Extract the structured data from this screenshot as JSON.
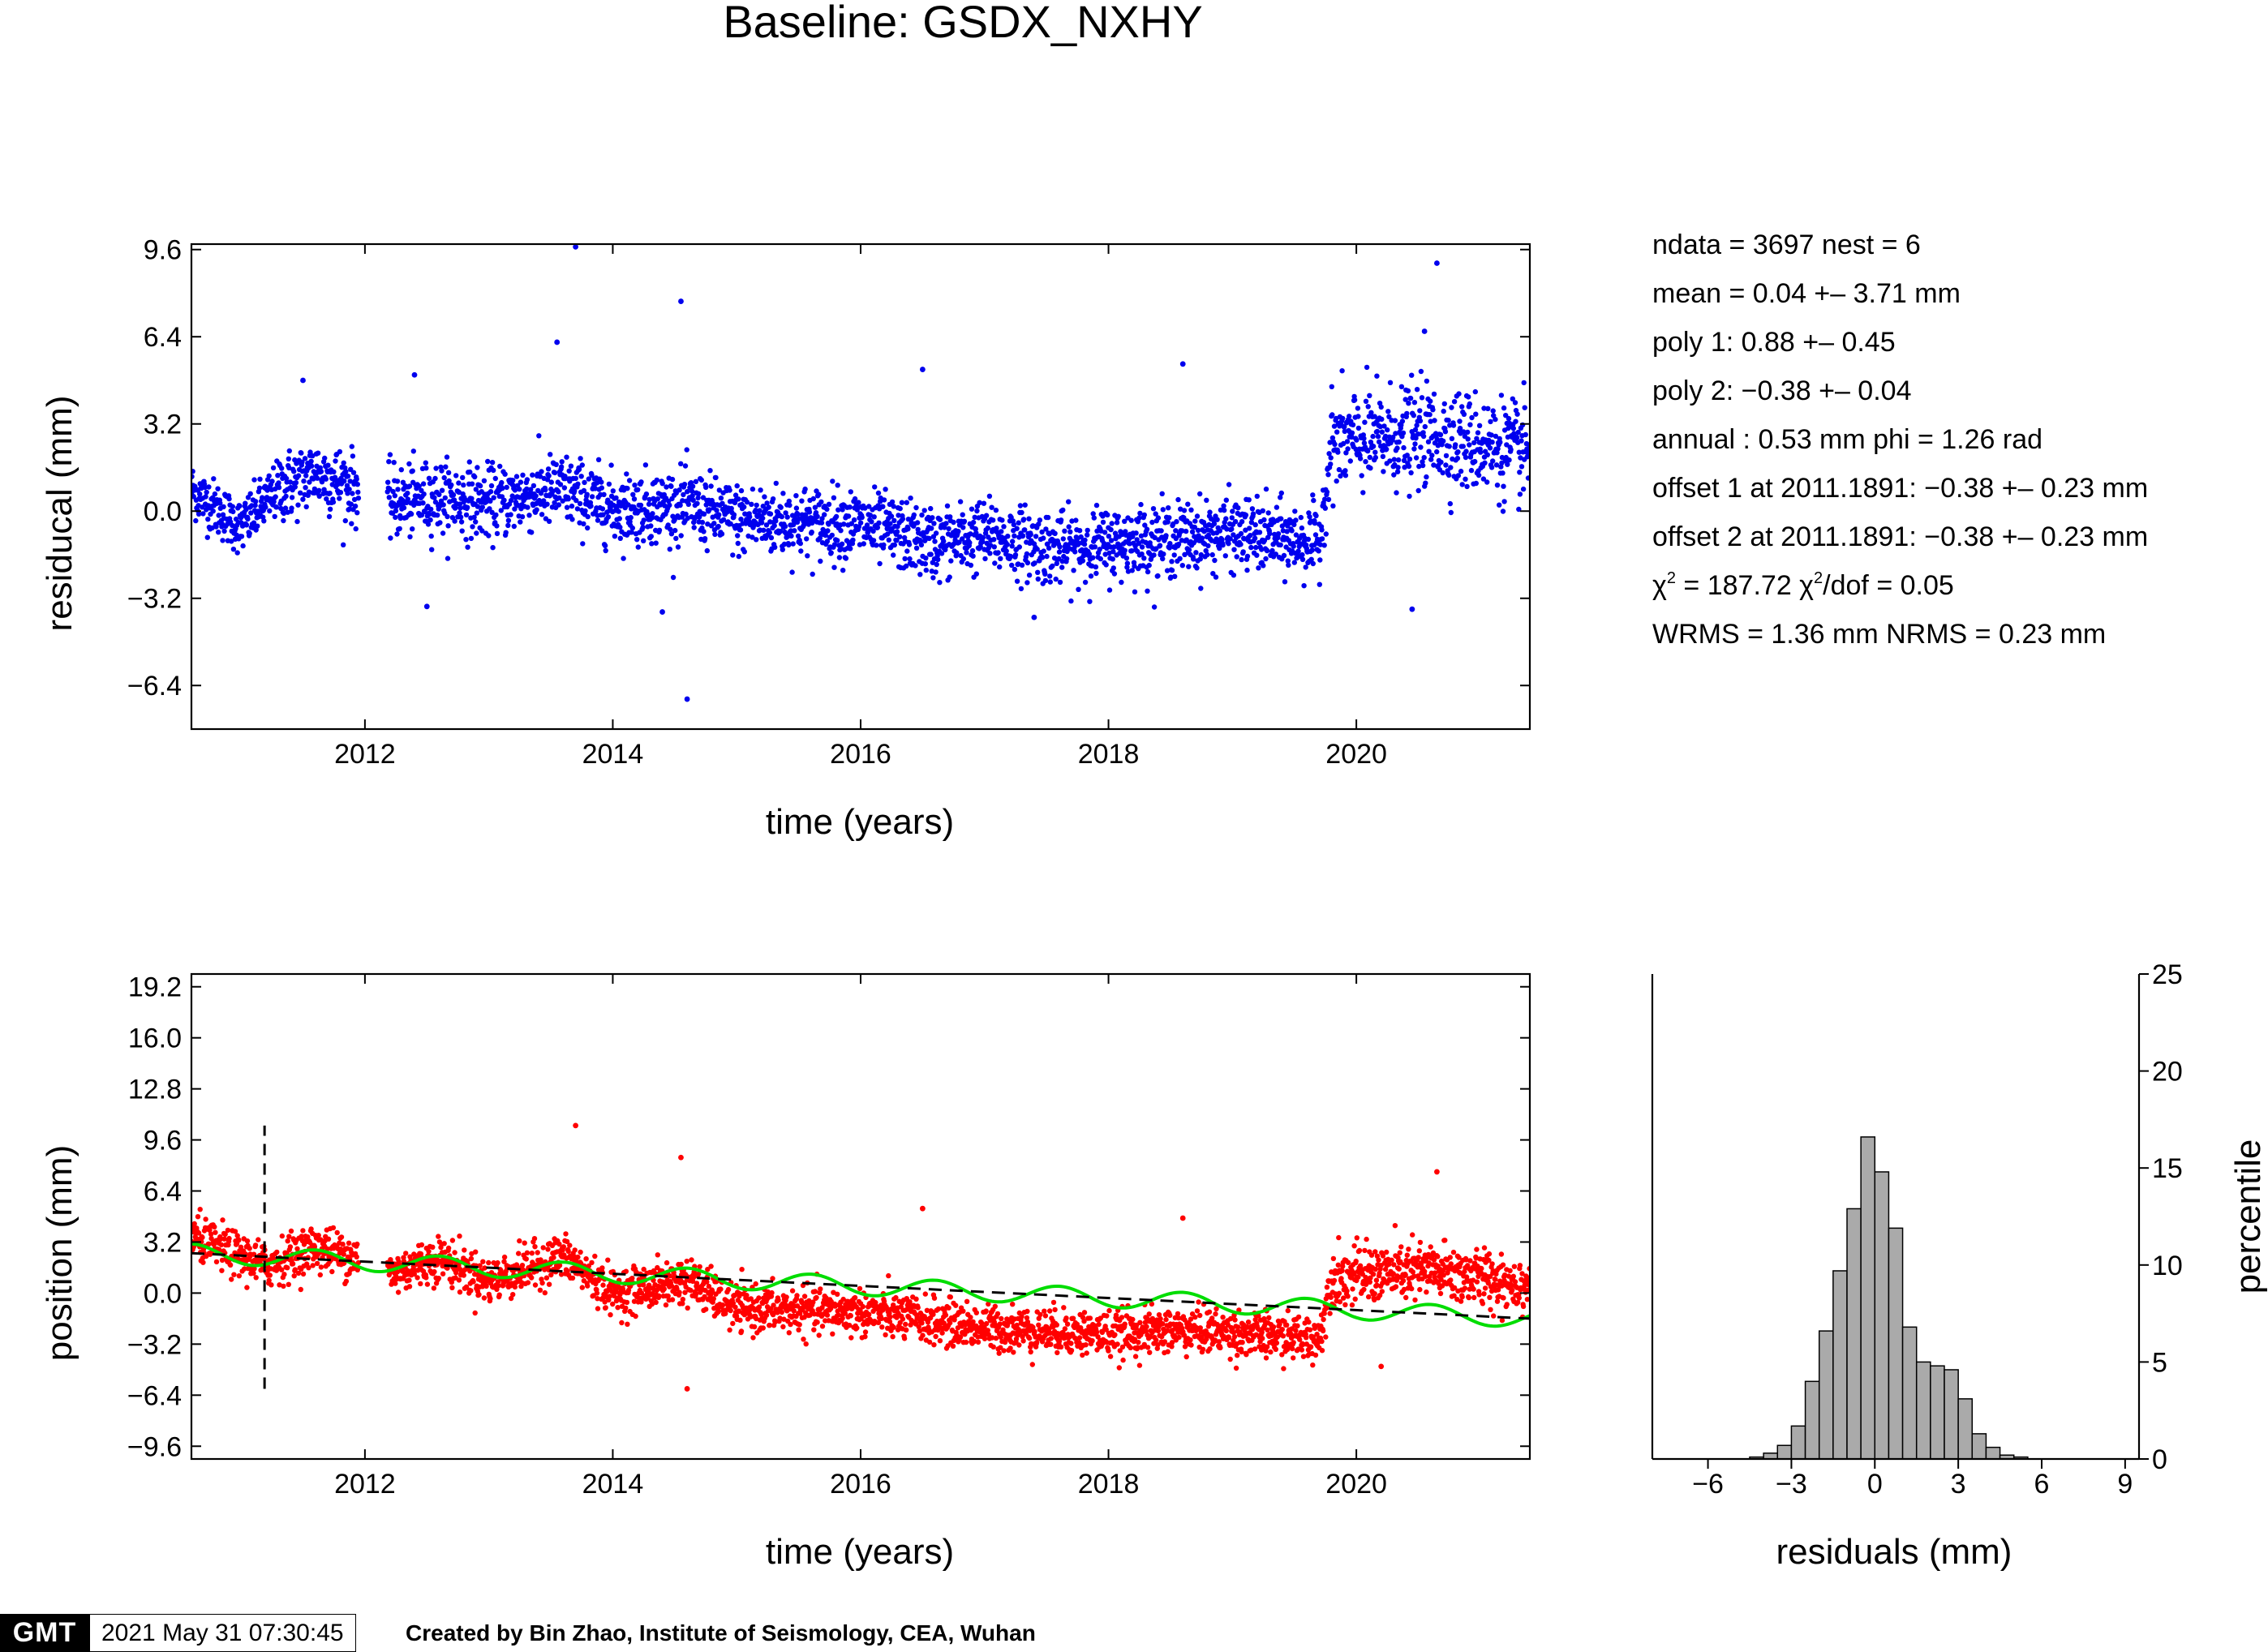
{
  "title": "Baseline: GSDX_NXHY",
  "stats": {
    "line1": "ndata = 3697  nest = 6",
    "line2": "mean = 0.04 +– 3.71 mm",
    "line3": "poly 1: 0.88 +– 0.45",
    "line4": "poly 2: −0.38 +– 0.04",
    "line5": "annual : 0.53 mm  phi = 1.26 rad",
    "line6": "offset 1 at 2011.1891: −0.38 +– 0.23 mm",
    "line7": "offset 2 at 2011.1891: −0.38 +– 0.23 mm",
    "chi2_sym": "χ",
    "chi2_sup": "2",
    "chi2_val": " = 187.72  ",
    "chi2dof_sym": "χ",
    "chi2dof_sup": "2",
    "chi2dof_val": "/dof = 0.05",
    "line9": "WRMS = 1.36 mm  NRMS = 0.23 mm"
  },
  "footer": {
    "logo": "GMT",
    "timestamp": "2021 May 31 07:30:45",
    "credit": "Created by Bin Zhao, Institute of Seismology, CEA, Wuhan"
  },
  "chart_data": [
    {
      "type": "scatter",
      "name": "residual",
      "color": "#0000ee",
      "xlabel": "time (years)",
      "ylabel": "residucal (mm)",
      "xlim": [
        2010.6,
        2021.4
      ],
      "ylim": [
        -8.0,
        9.8
      ],
      "xticks": [
        2012,
        2014,
        2016,
        2018,
        2020
      ],
      "yticks": [
        -6.4,
        -3.2,
        0.0,
        3.2,
        6.4,
        9.6
      ],
      "ytick_labels": [
        "−6.4",
        "−3.2",
        "0.0",
        "3.2",
        "6.4",
        "9.6"
      ],
      "trend_points": [
        [
          2010.6,
          0.8
        ],
        [
          2011.0,
          -0.6
        ],
        [
          2011.3,
          0.8
        ],
        [
          2011.6,
          1.4
        ],
        [
          2011.9,
          0.9
        ],
        [
          2012.2,
          0.3
        ],
        [
          2012.6,
          0.5
        ],
        [
          2013.0,
          0.3
        ],
        [
          2013.6,
          0.8
        ],
        [
          2014.0,
          0.1
        ],
        [
          2014.6,
          0.2
        ],
        [
          2015.0,
          -0.3
        ],
        [
          2016.0,
          -0.5
        ],
        [
          2016.6,
          -1.2
        ],
        [
          2017.0,
          -0.9
        ],
        [
          2017.6,
          -1.4
        ],
        [
          2018.0,
          -1.2
        ],
        [
          2018.6,
          -1.0
        ],
        [
          2019.0,
          -0.8
        ],
        [
          2019.7,
          -1.2
        ],
        [
          2019.8,
          2.5
        ],
        [
          2020.6,
          2.8
        ],
        [
          2021.4,
          2.1
        ]
      ],
      "outliers": [
        [
          2013.7,
          9.7
        ],
        [
          2014.55,
          7.7
        ],
        [
          2014.6,
          -6.9
        ],
        [
          2020.65,
          9.1
        ],
        [
          2020.55,
          6.6
        ],
        [
          2018.6,
          5.4
        ],
        [
          2016.5,
          5.2
        ],
        [
          2013.55,
          6.2
        ],
        [
          2012.5,
          -3.5
        ],
        [
          2014.4,
          -3.7
        ],
        [
          2020.45,
          -3.6
        ],
        [
          2017.4,
          -3.9
        ],
        [
          2011.5,
          4.8
        ],
        [
          2012.4,
          5.0
        ]
      ]
    },
    {
      "type": "scatter",
      "name": "position",
      "color": "#ff0000",
      "xlabel": "time (years)",
      "ylabel": "position (mm)",
      "xlim": [
        2010.6,
        2021.4
      ],
      "ylim": [
        -10.4,
        20.0
      ],
      "xticks": [
        2012,
        2014,
        2016,
        2018,
        2020
      ],
      "yticks": [
        -9.6,
        -6.4,
        -3.2,
        0.0,
        3.2,
        6.4,
        9.6,
        12.8,
        16.0,
        19.2
      ],
      "ytick_labels": [
        "−9.6",
        "−6.4",
        "−3.2",
        "0.0",
        "3.2",
        "6.4",
        "9.6",
        "12.8",
        "16.0",
        "19.2"
      ],
      "offset_line_x": 2011.19,
      "offset_line_ylim": [
        -6.0,
        10.5
      ],
      "model_line": {
        "color": "#00dd00",
        "annual_amplitude": 0.53
      },
      "trend_line": {
        "color": "#000000",
        "style": "dashed",
        "x": [
          2010.6,
          2021.4
        ],
        "y": [
          2.5,
          -1.6
        ]
      },
      "trend_points": [
        [
          2010.6,
          3.5
        ],
        [
          2011.2,
          1.7
        ],
        [
          2011.6,
          2.9
        ],
        [
          2011.9,
          2.3
        ],
        [
          2012.2,
          1.2
        ],
        [
          2012.6,
          2.2
        ],
        [
          2013.0,
          0.7
        ],
        [
          2013.6,
          2.3
        ],
        [
          2014.0,
          0.0
        ],
        [
          2014.6,
          0.8
        ],
        [
          2015.0,
          -1.0
        ],
        [
          2016.0,
          -1.2
        ],
        [
          2016.6,
          -1.8
        ],
        [
          2017.0,
          -2.2
        ],
        [
          2017.6,
          -2.4
        ],
        [
          2018.0,
          -2.6
        ],
        [
          2018.6,
          -2.3
        ],
        [
          2019.0,
          -2.5
        ],
        [
          2019.7,
          -2.9
        ],
        [
          2019.8,
          1.0
        ],
        [
          2020.6,
          1.4
        ],
        [
          2021.4,
          0.5
        ]
      ],
      "outliers": [
        [
          2013.7,
          10.5
        ],
        [
          2014.55,
          8.5
        ],
        [
          2014.6,
          -6.0
        ],
        [
          2020.65,
          7.6
        ],
        [
          2016.5,
          5.3
        ],
        [
          2018.6,
          4.7
        ],
        [
          2020.2,
          -4.6
        ]
      ]
    },
    {
      "type": "bar",
      "name": "histogram",
      "color": "#aaaaaa",
      "xlabel": "residuals (mm)",
      "ylabel": "percentile",
      "xlim": [
        -8,
        9.5
      ],
      "ylim": [
        0,
        25
      ],
      "xticks": [
        -6,
        -3,
        0,
        3,
        6,
        9
      ],
      "xtick_labels": [
        "−6",
        "−3",
        "0",
        "3",
        "6",
        "9"
      ],
      "yticks": [
        0,
        5,
        10,
        15,
        20,
        25
      ],
      "bin_width": 0.5,
      "bins_start": [
        -4.5,
        -4.0,
        -3.5,
        -3.0,
        -2.5,
        -2.0,
        -1.5,
        -1.0,
        -0.5,
        0.0,
        0.5,
        1.0,
        1.5,
        2.0,
        2.5,
        3.0,
        3.5,
        4.0,
        4.5,
        5.0
      ],
      "values": [
        0.1,
        0.3,
        0.7,
        1.7,
        4.0,
        6.6,
        9.7,
        12.9,
        16.6,
        14.8,
        11.9,
        6.8,
        5.0,
        4.8,
        4.6,
        3.1,
        1.3,
        0.6,
        0.2,
        0.1
      ]
    }
  ]
}
